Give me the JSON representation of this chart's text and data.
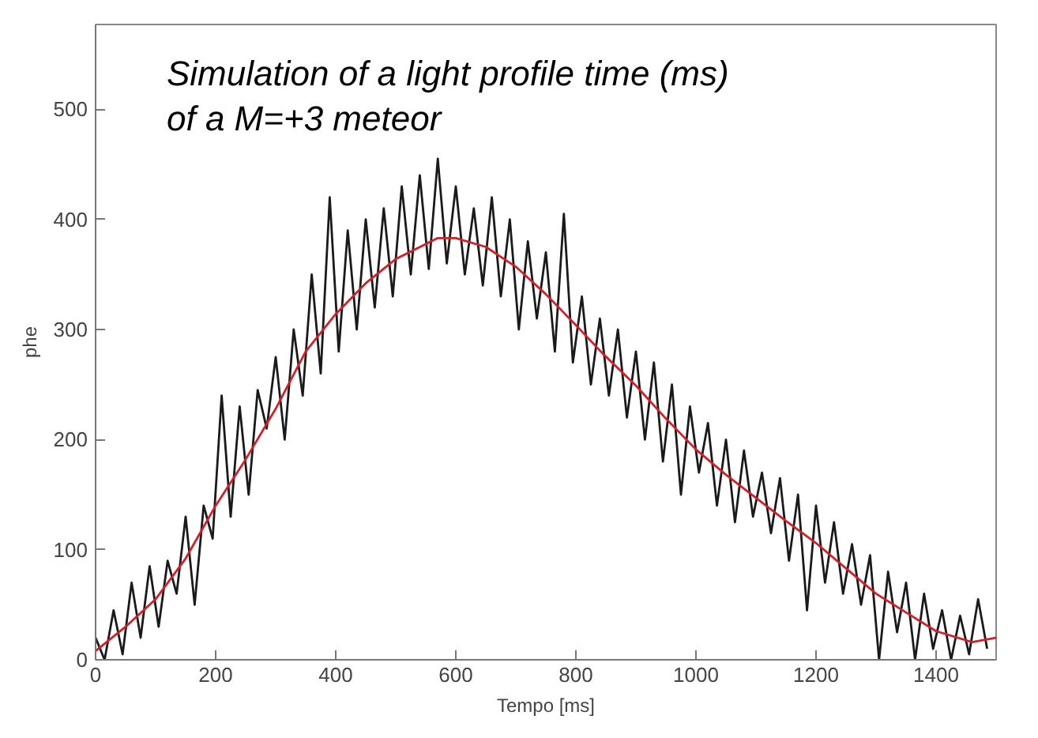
{
  "chart_data": {
    "type": "line",
    "title": "Simulation of a light profile  time (ms)\nof a M=+3 meteor",
    "xlabel": "Tempo [ms]",
    "ylabel": "phe",
    "xlim": [
      0,
      1500
    ],
    "ylim": [
      0,
      577
    ],
    "xticks": [
      0,
      200,
      400,
      600,
      800,
      1000,
      1200,
      1400
    ],
    "yticks": [
      0,
      100,
      200,
      300,
      400,
      500
    ],
    "grid": false,
    "marker": "none",
    "series": [
      {
        "color": "#1a1a1a",
        "x": [
          0,
          15,
          30,
          45,
          60,
          75,
          90,
          105,
          120,
          135,
          150,
          165,
          180,
          195,
          210,
          225,
          240,
          255,
          270,
          285,
          300,
          315,
          330,
          345,
          360,
          375,
          390,
          405,
          420,
          435,
          450,
          465,
          480,
          495,
          510,
          525,
          540,
          555,
          570,
          585,
          600,
          615,
          630,
          645,
          660,
          675,
          690,
          705,
          720,
          735,
          750,
          765,
          780,
          795,
          810,
          825,
          840,
          855,
          870,
          885,
          900,
          915,
          930,
          945,
          960,
          975,
          990,
          1005,
          1020,
          1035,
          1050,
          1065,
          1080,
          1095,
          1110,
          1125,
          1140,
          1155,
          1170,
          1185,
          1200,
          1215,
          1230,
          1245,
          1260,
          1275,
          1290,
          1305,
          1320,
          1335,
          1350,
          1365,
          1380,
          1395,
          1410,
          1425,
          1440,
          1455,
          1470,
          1485
        ],
        "values": [
          20,
          0,
          45,
          5,
          70,
          20,
          85,
          30,
          90,
          60,
          130,
          50,
          140,
          110,
          240,
          130,
          230,
          150,
          245,
          210,
          275,
          200,
          300,
          240,
          350,
          260,
          420,
          280,
          390,
          300,
          400,
          320,
          410,
          330,
          430,
          350,
          440,
          355,
          455,
          360,
          430,
          350,
          410,
          340,
          420,
          330,
          400,
          300,
          380,
          310,
          370,
          280,
          405,
          270,
          330,
          250,
          310,
          240,
          300,
          220,
          280,
          200,
          270,
          180,
          250,
          150,
          230,
          170,
          215,
          140,
          200,
          125,
          190,
          130,
          170,
          115,
          165,
          90,
          150,
          45,
          140,
          70,
          125,
          60,
          105,
          50,
          95,
          0,
          80,
          25,
          70,
          0,
          60,
          10,
          45,
          0,
          40,
          5,
          55,
          10
        ]
      },
      {
        "color": "#d0202a",
        "x": [
          0,
          50,
          100,
          150,
          200,
          250,
          300,
          350,
          400,
          450,
          500,
          570,
          600,
          650,
          700,
          750,
          800,
          845,
          900,
          950,
          1000,
          1050,
          1100,
          1150,
          1200,
          1250,
          1300,
          1350,
          1400,
          1460,
          1500
        ],
        "values": [
          8,
          30,
          55,
          92,
          140,
          182,
          228,
          280,
          314,
          342,
          364,
          383,
          383,
          375,
          357,
          332,
          304,
          278,
          249,
          219,
          191,
          168,
          147,
          126,
          106,
          83,
          60,
          43,
          26,
          16,
          20
        ]
      }
    ]
  }
}
